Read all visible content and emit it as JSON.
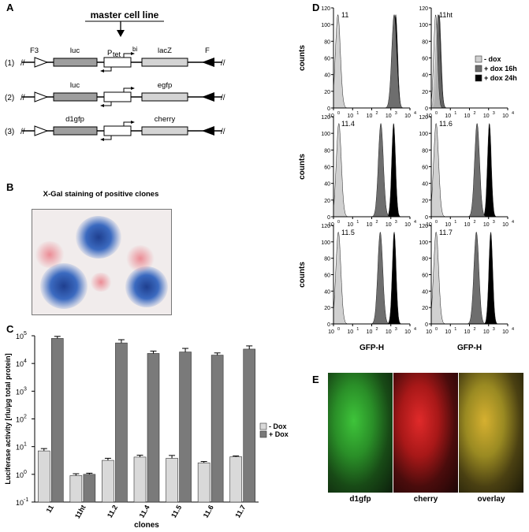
{
  "panel_labels": {
    "a": "A",
    "b": "B",
    "c": "C",
    "d": "D",
    "e": "E"
  },
  "panelA": {
    "master_label": "master cell line",
    "constructs": [
      {
        "num": "(1)",
        "left_gene": "luc",
        "right_gene": "lacZ"
      },
      {
        "num": "(2)",
        "left_gene": "luc",
        "right_gene": "egfp"
      },
      {
        "num": "(3)",
        "left_gene": "d1gfp",
        "right_gene": "cherry"
      }
    ],
    "f3": "F3",
    "f": "F",
    "ptet_p": "P",
    "ptet_sub": "tet",
    "bi": "bi"
  },
  "panelB": {
    "title": "X-Gal staining of positive clones"
  },
  "panelE": {
    "labels": [
      "d1gfp",
      "cherry",
      "overlay"
    ],
    "colors": {
      "d1gfp": "#3ec43a",
      "cherry": "#e02a2a",
      "overlay": "#d6b030"
    }
  },
  "chart_data": [
    {
      "type": "bar",
      "panel": "C",
      "categories": [
        "11",
        "11ht",
        "11.2",
        "11.4",
        "11.5",
        "11.6",
        "11.7"
      ],
      "series": [
        {
          "name": "- Dox",
          "color": "#d9d9d9",
          "values": [
            7,
            0.9,
            3.2,
            4.2,
            3.8,
            2.6,
            4.3
          ],
          "errors": [
            1.5,
            0.15,
            0.6,
            0.7,
            1.0,
            0.3,
            0.3
          ]
        },
        {
          "name": "+ Dox",
          "color": "#7a7a7a",
          "values": [
            80000,
            1.0,
            55000,
            23000,
            26000,
            20000,
            33000
          ],
          "errors": [
            15000,
            0.1,
            17000,
            5000,
            9000,
            4000,
            10000
          ]
        }
      ],
      "xlabel": "clones",
      "ylabel": "Luciferase activity [rlu/µg total protein]",
      "yscale": "log",
      "ylim": [
        0.1,
        100000
      ],
      "ytick_bases": [
        "10",
        "10",
        "10",
        "10",
        "10",
        "10",
        "10"
      ],
      "ytick_exps": [
        "-1",
        "0",
        "1",
        "2",
        "3",
        "4",
        "5"
      ],
      "legend": "right"
    },
    {
      "type": "area",
      "panel": "D",
      "xscale": "log",
      "xlim": [
        1,
        10000
      ],
      "ylim": [
        0,
        120
      ],
      "yticks": [
        "0",
        "20",
        "40",
        "60",
        "80",
        "100",
        "120"
      ],
      "xtick_base": "10",
      "xtick_exps": [
        "0",
        "1",
        "2",
        "3",
        "4"
      ],
      "ylabel": "counts",
      "xlabel": "GFP-H",
      "legend": "top-right",
      "series": [
        {
          "name": "- dox",
          "color": "#d0d0d0"
        },
        {
          "name": "+ dox 16h",
          "color": "#6e6e6e"
        },
        {
          "name": "+ dox 24h",
          "color": "#000000"
        }
      ],
      "histograms": [
        {
          "label": "11",
          "peaks": [
            1.7,
            1500,
            1800
          ],
          "induced": true
        },
        {
          "label": "11ht",
          "peaks": [
            1.7,
            2.3,
            2.6
          ],
          "induced": false
        },
        {
          "label": "11.4",
          "peaks": [
            1.9,
            300,
            1400
          ],
          "induced": true
        },
        {
          "label": "11.6",
          "peaks": [
            1.8,
            250,
            1100
          ],
          "induced": true
        },
        {
          "label": "11.5",
          "peaks": [
            1.8,
            280,
            1500
          ],
          "induced": true
        },
        {
          "label": "11.7",
          "peaks": [
            1.8,
            230,
            1300
          ],
          "induced": true
        }
      ]
    }
  ]
}
